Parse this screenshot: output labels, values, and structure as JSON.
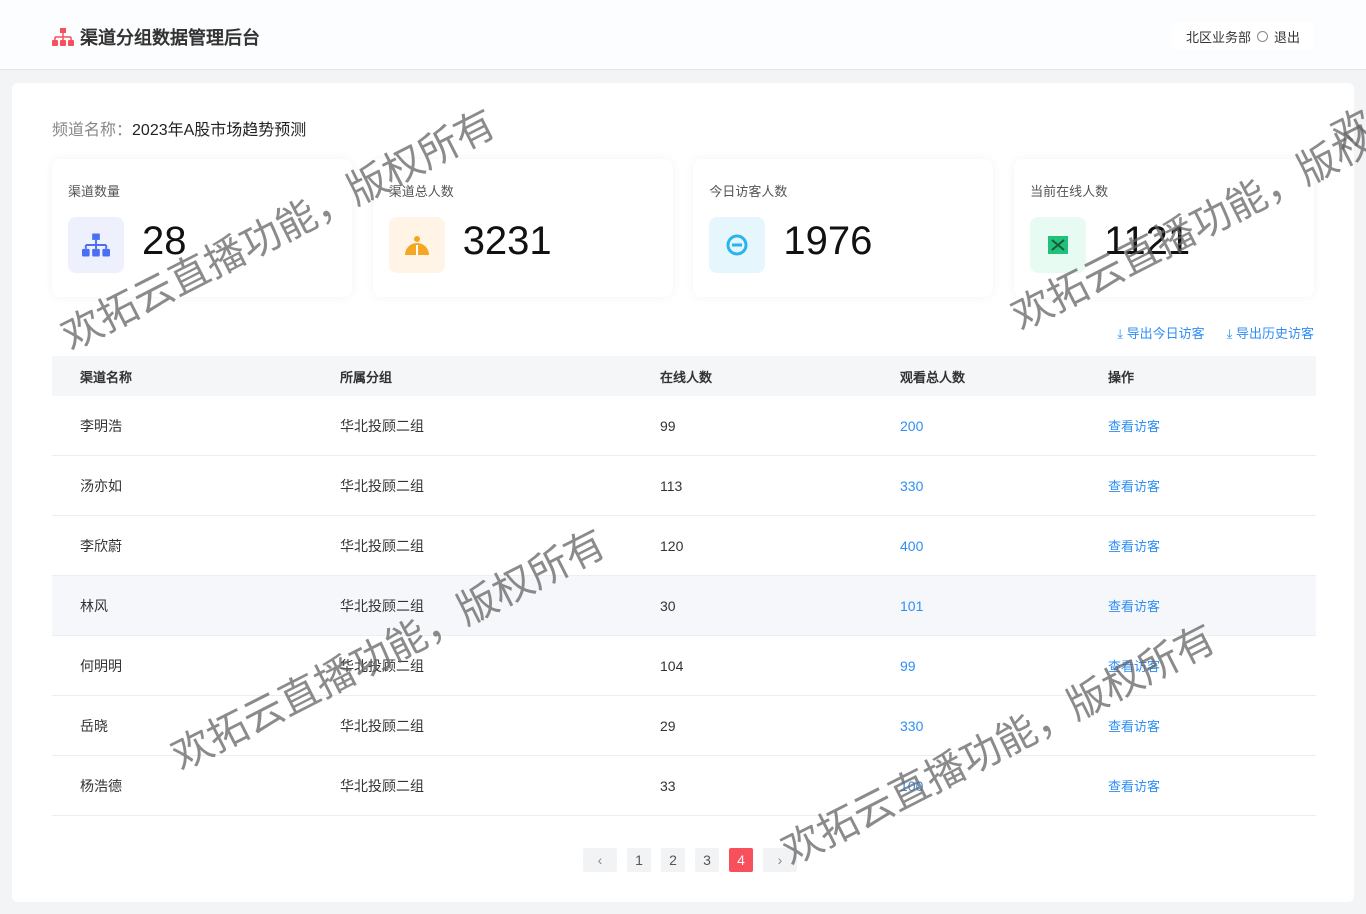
{
  "header": {
    "title": "渠道分组数据管理后台",
    "department": "北区业务部",
    "logout": "退出"
  },
  "channel": {
    "label": "频道名称：",
    "name": "2023年A股市场趋势预测"
  },
  "stats": [
    {
      "title": "渠道数量",
      "value": "28",
      "icon": "org-chart-icon",
      "bg": "#eef1fd",
      "color": "#4c6ef5"
    },
    {
      "title": "渠道总人数",
      "value": "3231",
      "icon": "users-icon",
      "bg": "#fff4e5",
      "color": "#f5a623"
    },
    {
      "title": "今日访客人数",
      "value": "1976",
      "icon": "visitor-icon",
      "bg": "#e6f6fd",
      "color": "#2bb3f0"
    },
    {
      "title": "当前在线人数",
      "value": "1121",
      "icon": "online-icon",
      "bg": "#e8fbf3",
      "color": "#1fc17b"
    }
  ],
  "exports": {
    "today": "导出今日访客",
    "history": "导出历史访客"
  },
  "table": {
    "headers": [
      "渠道名称",
      "所属分组",
      "在线人数",
      "观看总人数",
      "操作"
    ],
    "rows": [
      {
        "name": "李明浩",
        "group": "华北投顾二组",
        "online": "99",
        "total": "200",
        "action": "查看访客"
      },
      {
        "name": "汤亦如",
        "group": "华北投顾二组",
        "online": "113",
        "total": "330",
        "action": "查看访客"
      },
      {
        "name": "李欣蔚",
        "group": "华北投顾二组",
        "online": "120",
        "total": "400",
        "action": "查看访客"
      },
      {
        "name": "林风",
        "group": "华北投顾二组",
        "online": "30",
        "total": "101",
        "action": "查看访客"
      },
      {
        "name": "何明明",
        "group": "华北投顾二组",
        "online": "104",
        "total": "99",
        "action": "查看访客"
      },
      {
        "name": "岳晓",
        "group": "华北投顾二组",
        "online": "29",
        "total": "330",
        "action": "查看访客"
      },
      {
        "name": "杨浩德",
        "group": "华北投顾二组",
        "online": "33",
        "total": "100",
        "action": "查看访客"
      }
    ]
  },
  "pagination": {
    "pages": [
      "1",
      "2",
      "3",
      "4"
    ],
    "current": "4"
  },
  "colors": {
    "accent": "#f5505c",
    "link": "#2f8ef4"
  },
  "watermark": "欢拓云直播功能，版权所有"
}
